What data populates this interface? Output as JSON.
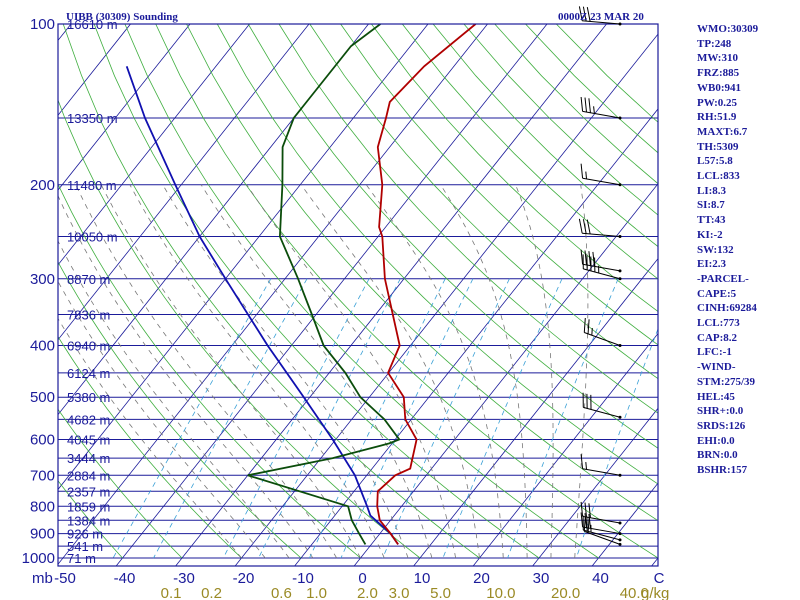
{
  "header": {
    "station": "UIBB (30309) Sounding",
    "time": "0000Z 23 MAR 20"
  },
  "colors": {
    "axis": "#1b1b9a",
    "isobar": "#1b1b9a",
    "isotherm": "#1b1b9a",
    "dry_adiabat": "#3fae3f",
    "moist_adiabat": "#777777",
    "mixing_ratio": "#3aa0d6",
    "temperature": "#b00000",
    "dewpoint": "#0b4d0b",
    "parcel": "#1010b0",
    "wind_barb": "#000000",
    "mixing_label": "#9a8a25"
  },
  "indices": [
    "WMO:30309",
    "TP:248",
    "MW:310",
    "FRZ:885",
    "WB0:941",
    "PW:0.25",
    "RH:51.9",
    "MAXT:6.7",
    "TH:5309",
    "L57:5.8",
    "LCL:833",
    "LI:8.3",
    "SI:8.7",
    "TT:43",
    "KI:-2",
    "SW:132",
    "EI:2.3",
    "-PARCEL-",
    "CAPE:5",
    "CINH:69284",
    "LCL:773",
    "CAP:8.2",
    "LFC:-1",
    "-WIND-",
    "STM:275/39",
    "HEL:45",
    "SHR+:0.0",
    "SRDS:126",
    "EHI:0.0",
    "BRN:0.0",
    "BSHR:157"
  ],
  "chart_data": {
    "type": "skew-t log-p",
    "pressure_unit": "mb",
    "mixing_ratio_unit": "g/kg",
    "pressure_ticks": [
      100,
      200,
      300,
      400,
      500,
      600,
      700,
      800,
      900,
      1000
    ],
    "pressure_tick_labels": [
      "100",
      "200",
      "300",
      "400",
      "500",
      "600",
      "700",
      "800",
      "900",
      "1000"
    ],
    "temperature_ticks": [
      -50,
      -40,
      -30,
      -20,
      -10,
      0,
      10,
      20,
      30,
      40
    ],
    "temperature_tick_labels": [
      "-50",
      "-40",
      "-30",
      "-20",
      "-10",
      "0",
      "10",
      "20",
      "30",
      "40"
    ],
    "temperature_axis_end_label": "C",
    "pressure_axis_unit_label": "mb",
    "mixing_ratio_ticks": [
      0.1,
      0.2,
      0.6,
      1.0,
      2.0,
      3.0,
      5.0,
      10.0,
      20.0,
      40.0
    ],
    "mixing_ratio_tick_labels": [
      "0.1",
      "0.2",
      "0.6",
      "1.0",
      "2.0",
      "3.0",
      "5.0",
      "10.0",
      "20.0",
      "40.0"
    ],
    "heights": [
      {
        "p": 100,
        "label": "16610 m"
      },
      {
        "p": 150,
        "label": "13350 m"
      },
      {
        "p": 200,
        "label": "11480 m"
      },
      {
        "p": 250,
        "label": "10050 m"
      },
      {
        "p": 300,
        "label": "8870 m"
      },
      {
        "p": 350,
        "label": "7836 m"
      },
      {
        "p": 400,
        "label": "6940 m"
      },
      {
        "p": 450,
        "label": "6124 m"
      },
      {
        "p": 500,
        "label": "5380 m"
      },
      {
        "p": 550,
        "label": "4682 m"
      },
      {
        "p": 600,
        "label": "4045 m"
      },
      {
        "p": 650,
        "label": "3444 m"
      },
      {
        "p": 700,
        "label": "2884 m"
      },
      {
        "p": 750,
        "label": "2357 m"
      },
      {
        "p": 800,
        "label": "1859 m"
      },
      {
        "p": 850,
        "label": "1384 m"
      },
      {
        "p": 900,
        "label": "926 m"
      },
      {
        "p": 950,
        "label": "541 m"
      },
      {
        "p": 1000,
        "label": "71 m"
      }
    ],
    "temperature_profile": [
      {
        "p": 943,
        "t": 4.5
      },
      {
        "p": 900,
        "t": 1.8
      },
      {
        "p": 850,
        "t": -1.8
      },
      {
        "p": 800,
        "t": -4.1
      },
      {
        "p": 750,
        "t": -6.0
      },
      {
        "p": 700,
        "t": -5.2
      },
      {
        "p": 680,
        "t": -3.6
      },
      {
        "p": 600,
        "t": -6.4
      },
      {
        "p": 550,
        "t": -11.0
      },
      {
        "p": 500,
        "t": -14.2
      },
      {
        "p": 450,
        "t": -20.1
      },
      {
        "p": 400,
        "t": -21.8
      },
      {
        "p": 350,
        "t": -27.1
      },
      {
        "p": 300,
        "t": -33.2
      },
      {
        "p": 250,
        "t": -39.3
      },
      {
        "p": 240,
        "t": -41.1
      },
      {
        "p": 200,
        "t": -46.2
      },
      {
        "p": 170,
        "t": -52.0
      },
      {
        "p": 150,
        "t": -54.5
      },
      {
        "p": 140,
        "t": -56.0
      },
      {
        "p": 120,
        "t": -55.0
      },
      {
        "p": 100,
        "t": -52.0
      }
    ],
    "dewpoint_profile": [
      {
        "p": 943,
        "t": -1.0
      },
      {
        "p": 900,
        "t": -3.5
      },
      {
        "p": 850,
        "t": -6.5
      },
      {
        "p": 800,
        "t": -9.0
      },
      {
        "p": 700,
        "t": -30.0
      },
      {
        "p": 650,
        "t": -18.0
      },
      {
        "p": 610,
        "t": -10.5
      },
      {
        "p": 600,
        "t": -9.3
      },
      {
        "p": 550,
        "t": -14.5
      },
      {
        "p": 500,
        "t": -21.5
      },
      {
        "p": 450,
        "t": -27.3
      },
      {
        "p": 400,
        "t": -34.6
      },
      {
        "p": 350,
        "t": -40.7
      },
      {
        "p": 300,
        "t": -47.8
      },
      {
        "p": 250,
        "t": -56.5
      },
      {
        "p": 200,
        "t": -63.0
      },
      {
        "p": 170,
        "t": -68.0
      },
      {
        "p": 150,
        "t": -70.0
      },
      {
        "p": 140,
        "t": -70.0
      },
      {
        "p": 110,
        "t": -70.0
      },
      {
        "p": 100,
        "t": -68.0
      }
    ],
    "parcel_profile": [
      {
        "p": 943,
        "t": 4.5
      },
      {
        "p": 900,
        "t": 1.8
      },
      {
        "p": 833,
        "t": -4.0
      },
      {
        "p": 800,
        "t": -5.8
      },
      {
        "p": 700,
        "t": -12.0
      },
      {
        "p": 600,
        "t": -20.5
      },
      {
        "p": 500,
        "t": -31.0
      },
      {
        "p": 400,
        "t": -44.0
      },
      {
        "p": 300,
        "t": -60.0
      },
      {
        "p": 250,
        "t": -70.0
      },
      {
        "p": 200,
        "t": -81.0
      },
      {
        "p": 150,
        "t": -95.0
      },
      {
        "p": 120,
        "t": -105.0
      }
    ],
    "wind_barbs": [
      {
        "p": 943,
        "dir": 290,
        "spd": 20
      },
      {
        "p": 925,
        "dir": 285,
        "spd": 25
      },
      {
        "p": 900,
        "dir": 280,
        "spd": 30
      },
      {
        "p": 860,
        "dir": 280,
        "spd": 30
      },
      {
        "p": 700,
        "dir": 280,
        "spd": 15
      },
      {
        "p": 545,
        "dir": 285,
        "spd": 30
      },
      {
        "p": 400,
        "dir": 290,
        "spd": 25
      },
      {
        "p": 300,
        "dir": 285,
        "spd": 45
      },
      {
        "p": 290,
        "dir": 280,
        "spd": 40
      },
      {
        "p": 250,
        "dir": 275,
        "spd": 30
      },
      {
        "p": 200,
        "dir": 280,
        "spd": 15
      },
      {
        "p": 150,
        "dir": 280,
        "spd": 35
      },
      {
        "p": 100,
        "dir": 275,
        "spd": 30
      }
    ],
    "grid": true
  }
}
